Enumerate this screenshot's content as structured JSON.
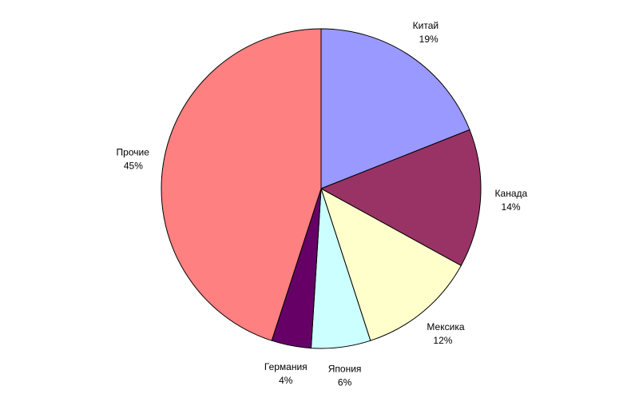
{
  "chart_data": {
    "type": "pie",
    "categories": [
      "Китай",
      "Канада",
      "Мексика",
      "Япония",
      "Германия",
      "Прочие"
    ],
    "values": [
      19,
      14,
      12,
      6,
      4,
      45
    ],
    "value_labels": [
      "19%",
      "14%",
      "12%",
      "6%",
      "4%",
      "45%"
    ],
    "colors": [
      "#9999ff",
      "#993366",
      "#ffffcc",
      "#ccffff",
      "#660066",
      "#ff8080"
    ]
  }
}
